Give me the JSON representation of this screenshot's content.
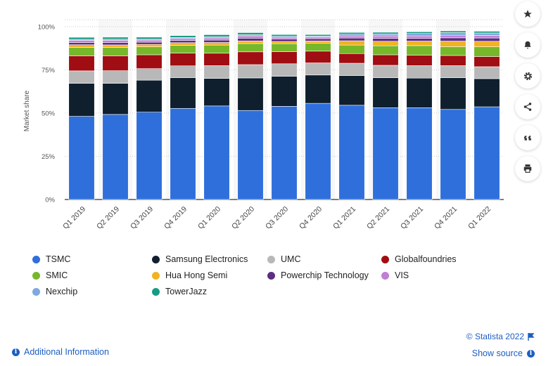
{
  "chart_data": {
    "type": "bar",
    "stacked": true,
    "categories": [
      "Q1 2019",
      "Q2 2019",
      "Q3 2019",
      "Q4 2019",
      "Q1 2020",
      "Q2 2020",
      "Q3 2020",
      "Q4 2020",
      "Q1 2021",
      "Q2 2021",
      "Q3 2021",
      "Q4 2021",
      "Q1 2022"
    ],
    "ylabel": "Market share",
    "ylim": [
      0,
      100
    ],
    "yticks": [
      "0%",
      "25%",
      "50%",
      "75%",
      "100%"
    ],
    "ytick_values": [
      0,
      25,
      50,
      75,
      100
    ],
    "legend_placement": "bottom",
    "series": [
      {
        "name": "TSMC",
        "color": "#2f6fdb",
        "values": [
          48.1,
          49.2,
          50.5,
          52.7,
          54.1,
          51.5,
          53.9,
          55.6,
          54.5,
          53.1,
          53.1,
          52.1,
          53.6
        ]
      },
      {
        "name": "Samsung Electronics",
        "color": "#0f1f2e",
        "values": [
          19.1,
          18.0,
          18.5,
          17.8,
          15.9,
          18.8,
          17.4,
          16.4,
          17.2,
          17.3,
          17.1,
          18.3,
          16.3
        ]
      },
      {
        "name": "UMC",
        "color": "#b8b8b8",
        "values": [
          7.2,
          7.3,
          6.7,
          6.8,
          7.4,
          7.7,
          7.2,
          7.0,
          7.1,
          7.2,
          7.2,
          7.0,
          6.9
        ]
      },
      {
        "name": "Globalfoundries",
        "color": "#a00d12",
        "values": [
          8.7,
          8.6,
          8.0,
          7.4,
          7.2,
          7.4,
          7.0,
          6.8,
          5.6,
          6.1,
          6.1,
          5.9,
          5.9
        ]
      },
      {
        "name": "SMIC",
        "color": "#76b82a",
        "values": [
          4.9,
          4.8,
          4.6,
          4.5,
          4.7,
          4.8,
          4.6,
          4.5,
          4.9,
          5.2,
          5.5,
          5.1,
          5.6
        ]
      },
      {
        "name": "Hua Hong Semi",
        "color": "#f0b323",
        "values": [
          1.5,
          1.5,
          1.4,
          1.5,
          1.5,
          1.5,
          1.3,
          1.4,
          2.5,
          2.6,
          2.6,
          3.2,
          3.2
        ]
      },
      {
        "name": "Powerchip Technology",
        "color": "#5c2d82",
        "values": [
          1.3,
          1.4,
          1.3,
          1.3,
          1.4,
          1.6,
          1.4,
          1.3,
          1.6,
          1.7,
          1.6,
          1.9,
          1.9
        ]
      },
      {
        "name": "VIS",
        "color": "#c17fd6",
        "values": [
          1.3,
          1.3,
          1.2,
          1.1,
          1.2,
          1.3,
          1.0,
          0.9,
          1.2,
          1.4,
          1.4,
          1.5,
          1.5
        ]
      },
      {
        "name": "Nexchip",
        "color": "#7ea9e0",
        "values": [
          0.5,
          0.6,
          0.5,
          0.6,
          0.7,
          0.7,
          0.6,
          0.6,
          1.0,
          1.1,
          1.4,
          1.5,
          1.4
        ]
      },
      {
        "name": "TowerJazz",
        "color": "#179c84",
        "values": [
          1.2,
          1.2,
          1.2,
          1.1,
          1.2,
          1.2,
          1.0,
          0.9,
          1.0,
          1.0,
          1.0,
          1.0,
          1.0
        ]
      }
    ]
  },
  "footer": {
    "additional_info": "Additional Information",
    "credit": "© Statista 2022",
    "show_source": "Show source"
  },
  "toolbar": {
    "icons": [
      "star-icon",
      "bell-icon",
      "gear-icon",
      "share-icon",
      "quote-icon",
      "print-icon"
    ]
  }
}
